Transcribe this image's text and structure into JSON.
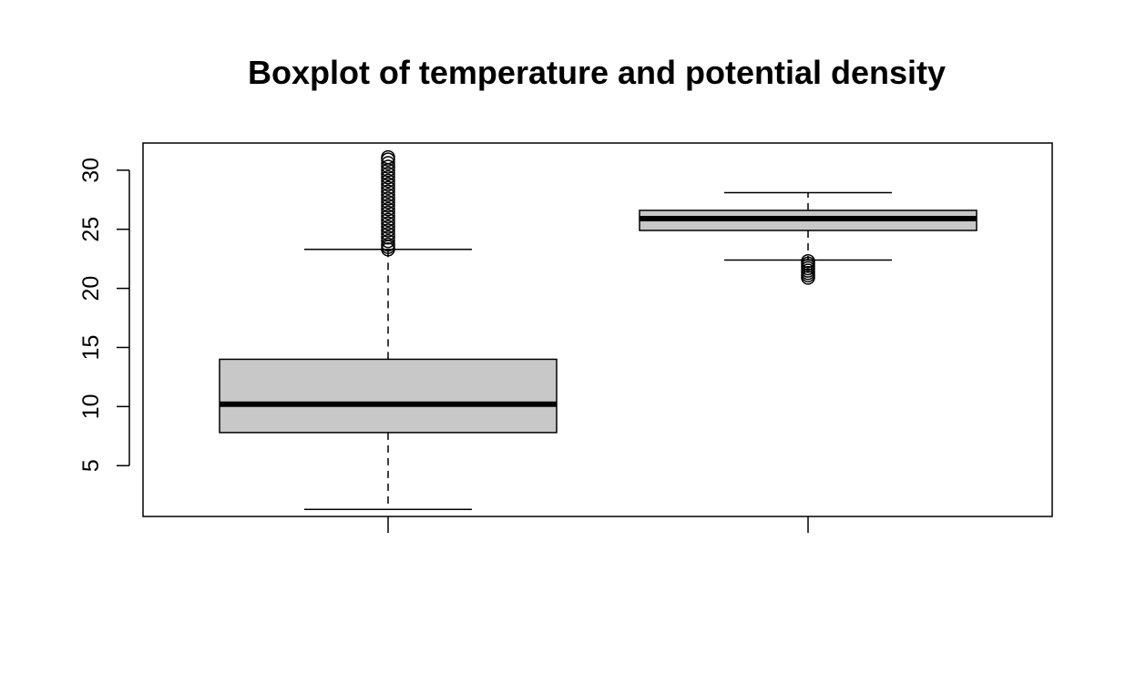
{
  "chart_data": {
    "type": "boxplot",
    "title": "Boxplot of temperature and potential density",
    "xlabel": "",
    "ylabel": "",
    "ylim": [
      0.7,
      32.3
    ],
    "y_ticks": [
      5,
      10,
      15,
      20,
      25,
      30
    ],
    "grid": false,
    "legend": "none",
    "box_fill": "#c8c8c8",
    "line_color": "#000000",
    "groups": [
      {
        "x": 1,
        "label": "",
        "whisker_low": 1.3,
        "q1": 7.8,
        "median": 10.2,
        "q3": 14.0,
        "whisker_high": 23.3,
        "outliers": [
          23.3,
          23.5,
          23.7,
          24.0,
          24.3,
          24.6,
          24.9,
          25.2,
          25.5,
          25.8,
          26.1,
          26.4,
          26.7,
          27.0,
          27.3,
          27.6,
          27.9,
          28.2,
          28.5,
          28.8,
          29.1,
          29.4,
          29.7,
          30.0,
          30.3,
          30.6,
          30.9,
          31.1
        ]
      },
      {
        "x": 2,
        "label": "",
        "whisker_low": 22.4,
        "q1": 24.9,
        "median": 25.9,
        "q3": 26.6,
        "whisker_high": 28.1,
        "outliers": [
          20.9,
          21.1,
          21.3,
          21.5,
          21.7,
          21.9,
          22.1,
          22.3
        ]
      }
    ]
  }
}
